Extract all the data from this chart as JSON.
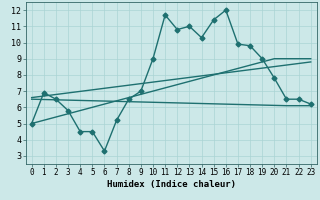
{
  "title": "",
  "xlabel": "Humidex (Indice chaleur)",
  "bg_color": "#cce8e8",
  "grid_color": "#aad4d4",
  "line_color": "#1e7070",
  "xlim": [
    -0.5,
    23.5
  ],
  "ylim": [
    2.5,
    12.5
  ],
  "xticks": [
    0,
    1,
    2,
    3,
    4,
    5,
    6,
    7,
    8,
    9,
    10,
    11,
    12,
    13,
    14,
    15,
    16,
    17,
    18,
    19,
    20,
    21,
    22,
    23
  ],
  "yticks": [
    3,
    4,
    5,
    6,
    7,
    8,
    9,
    10,
    11,
    12
  ],
  "line1_x": [
    0,
    1,
    2,
    3,
    4,
    5,
    6,
    7,
    8,
    9,
    10,
    11,
    12,
    13,
    14,
    15,
    16,
    17,
    18,
    19,
    20,
    21,
    22,
    23
  ],
  "line1_y": [
    5.0,
    6.9,
    6.5,
    5.8,
    4.5,
    4.5,
    3.3,
    5.2,
    6.5,
    7.0,
    9.0,
    11.7,
    10.8,
    11.0,
    10.3,
    11.4,
    12.0,
    9.9,
    9.8,
    9.0,
    7.8,
    6.5,
    6.5,
    6.2
  ],
  "line2_x": [
    0,
    20,
    23
  ],
  "line2_y": [
    5.0,
    9.0,
    9.0
  ],
  "line3_x": [
    0,
    23
  ],
  "line3_y": [
    6.6,
    8.8
  ],
  "line4_x": [
    0,
    21,
    23
  ],
  "line4_y": [
    6.5,
    6.1,
    6.1
  ],
  "marker": "D",
  "markersize": 2.5,
  "linewidth": 1.0
}
